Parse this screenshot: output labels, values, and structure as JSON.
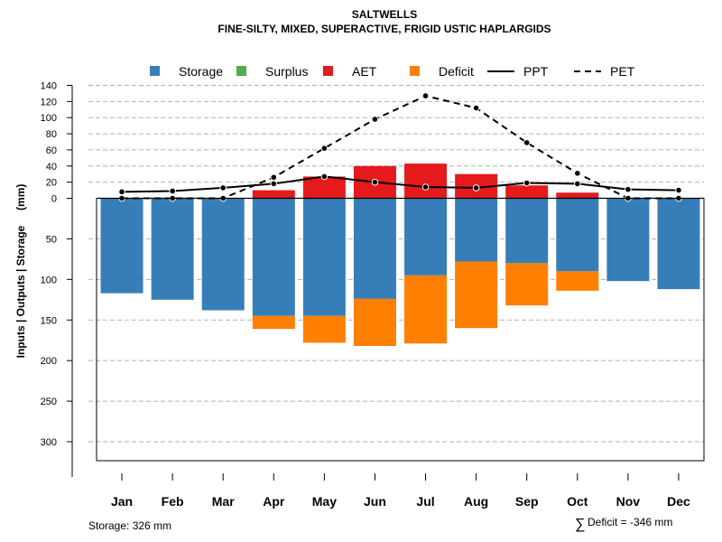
{
  "chart_data": {
    "type": "bar",
    "title": "SALTWELLS",
    "subtitle": "FINE-SILTY, MIXED, SUPERACTIVE, FRIGID USTIC HAPLARGIDS",
    "ylabel": "Inputs | Outputs | Storage     (mm)",
    "xlabel": "",
    "categories": [
      "Jan",
      "Feb",
      "Mar",
      "Apr",
      "May",
      "Jun",
      "Jul",
      "Aug",
      "Sep",
      "Oct",
      "Nov",
      "Dec"
    ],
    "legend": [
      "Storage",
      "Surplus",
      "AET",
      "Deficit",
      "PPT",
      "PET"
    ],
    "legend_position": "top",
    "colors": {
      "storage": "#377eb8",
      "surplus": "#4daf4a",
      "aet": "#e41a1c",
      "deficit": "#ff7f00"
    },
    "upper_axis": {
      "ylim": [
        0,
        140
      ],
      "ticks": [
        0,
        20,
        40,
        60,
        80,
        100,
        120,
        140
      ]
    },
    "lower_axis": {
      "ylim": [
        0,
        326
      ],
      "ticks": [
        0,
        50,
        100,
        150,
        200,
        250,
        300
      ]
    },
    "grid": true,
    "series": [
      {
        "name": "Storage",
        "values": [
          117,
          125,
          138,
          145,
          145,
          124,
          95,
          78,
          80,
          90,
          102,
          112
        ]
      },
      {
        "name": "Surplus",
        "values": [
          0,
          0,
          0,
          0,
          0,
          0,
          0,
          0,
          0,
          0,
          0,
          0
        ]
      },
      {
        "name": "AET",
        "values": [
          0,
          0,
          0,
          10,
          27,
          40,
          43,
          30,
          16,
          7,
          0,
          0
        ]
      },
      {
        "name": "Deficit",
        "values": [
          0,
          0,
          0,
          16,
          33,
          58,
          84,
          82,
          52,
          24,
          0,
          0
        ]
      },
      {
        "name": "PPT",
        "values": [
          8,
          9,
          13,
          18,
          27,
          20,
          14,
          13,
          19,
          18,
          11,
          10
        ]
      },
      {
        "name": "PET",
        "values": [
          0,
          0,
          0,
          26,
          62,
          98,
          127,
          112,
          69,
          31,
          0,
          0
        ]
      }
    ]
  },
  "footer": {
    "storage_note": "Storage: 326 mm",
    "deficit_symbol": "∑",
    "deficit_note": "Deficit = -346 mm"
  }
}
